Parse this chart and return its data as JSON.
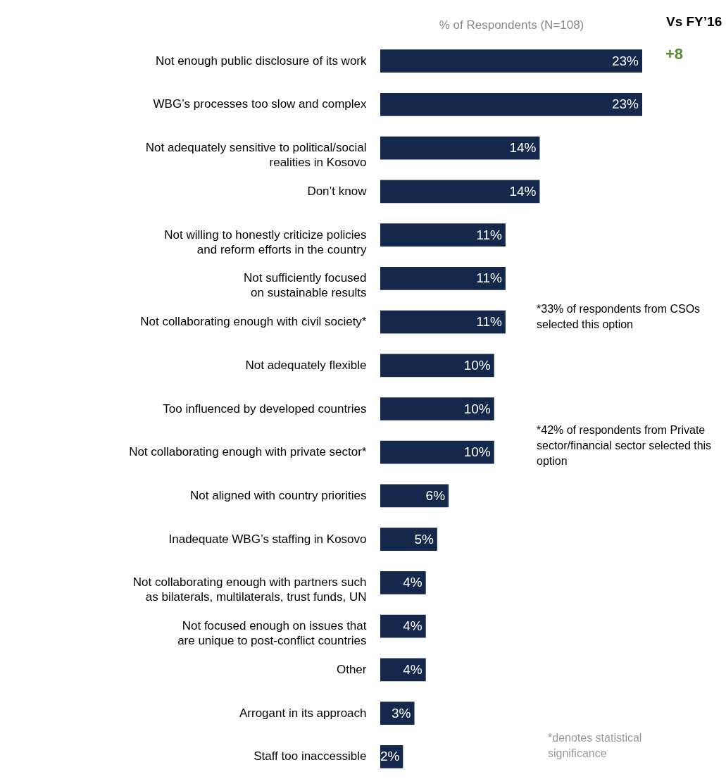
{
  "chart_data": {
    "type": "bar",
    "orientation": "horizontal",
    "xlabel": "% of Respondents (N=108)",
    "data_labels": true,
    "grid": false,
    "color": "#14284b",
    "categories": [
      "Not enough public disclosure of its work",
      "WBG’s processes too slow and complex",
      "Not adequately sensitive to political/social realities in Kosovo",
      "Don’t know",
      "Not willing to honestly criticize policies and reform efforts in the country",
      "Not sufficiently focused on sustainable results",
      "Not collaborating enough with civil society*",
      "Not adequately flexible",
      "Too influenced by developed countries",
      "Not collaborating enough with private sector*",
      "Not aligned with country priorities",
      "Inadequate WBG’s staffing in Kosovo",
      "Not collaborating enough with partners such as bilaterals, multilaterals, trust funds, UN",
      "Not focused enough on issues that are unique to post-conflict countries",
      "Other",
      "Arrogant in its approach",
      "Staff too inaccessible"
    ],
    "values": [
      23,
      23,
      14,
      14,
      11,
      11,
      11,
      10,
      10,
      10,
      6,
      5,
      4,
      4,
      4,
      3,
      2
    ],
    "value_labels": [
      "23%",
      "23%",
      "14%",
      "14%",
      "11%",
      "11%",
      "11%",
      "10%",
      "10%",
      "10%",
      "6%",
      "5%",
      "4%",
      "4%",
      "4%",
      "3%",
      "2%"
    ],
    "annotations": [
      {
        "text": "Vs FY’16"
      },
      "+8",
      {
        "text": "*33% of respondents from CSOs selected this option"
      },
      {
        "text": "*42% of respondents from Private sector/financial sector selected this option"
      },
      {
        "text": "*denotes statistical significance"
      }
    ]
  }
}
